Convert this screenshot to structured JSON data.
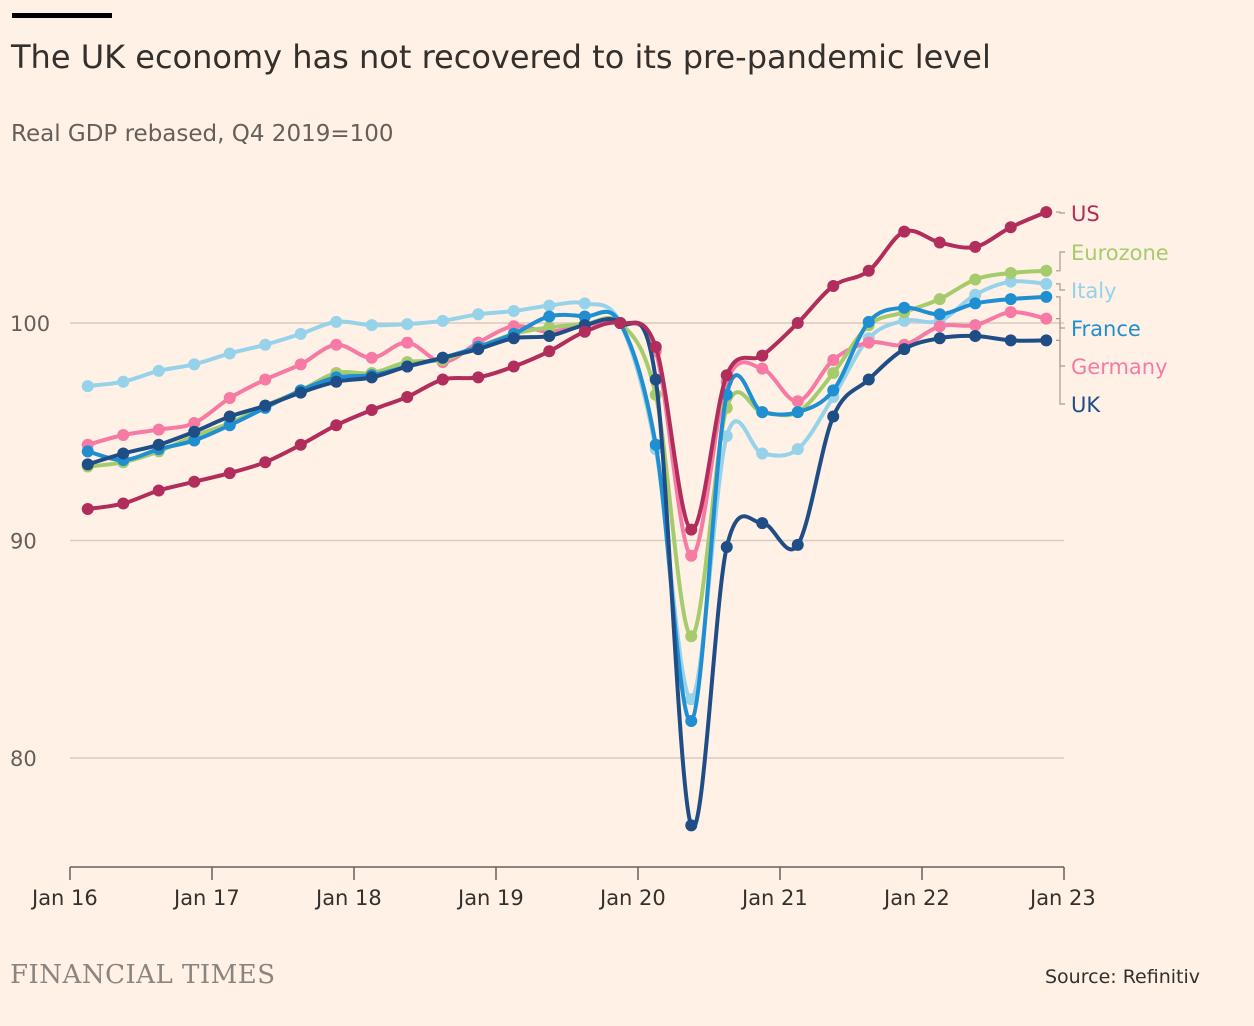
{
  "title": "The UK economy has not recovered to its pre-pandemic level",
  "subtitle": "Real GDP rebased, Q4 2019=100",
  "brand": "FINANCIAL TIMES",
  "source": "Source: Refinitiv",
  "chart_data": {
    "type": "line",
    "title": "The UK economy has not recovered to its pre-pandemic level",
    "ylabel": "Real GDP rebased, Q4 2019=100",
    "xlabel": "",
    "x": [
      "Q1 2016",
      "Q2 2016",
      "Q3 2016",
      "Q4 2016",
      "Q1 2017",
      "Q2 2017",
      "Q3 2017",
      "Q4 2017",
      "Q1 2018",
      "Q2 2018",
      "Q3 2018",
      "Q4 2018",
      "Q1 2019",
      "Q2 2019",
      "Q3 2019",
      "Q4 2019",
      "Q1 2020",
      "Q2 2020",
      "Q3 2020",
      "Q4 2020",
      "Q1 2021",
      "Q2 2021",
      "Q3 2021",
      "Q4 2021",
      "Q1 2022",
      "Q2 2022",
      "Q3 2022",
      "Q4 2022"
    ],
    "x_ticks": [
      "Jan 16",
      "Jan 17",
      "Jan 18",
      "Jan 19",
      "Jan 20",
      "Jan 21",
      "Jan 22",
      "Jan 23"
    ],
    "y_ticks": [
      80,
      90,
      100
    ],
    "ylim": [
      75,
      107
    ],
    "grid": true,
    "legend": "right, direct labels",
    "series": [
      {
        "name": "US",
        "color": "#b12d5c",
        "values": [
          91.45,
          91.7,
          92.3,
          92.7,
          93.1,
          93.6,
          94.4,
          95.3,
          96.0,
          96.6,
          97.4,
          97.5,
          98.0,
          98.7,
          99.6,
          100,
          98.9,
          90.5,
          97.6,
          98.5,
          100.0,
          101.7,
          102.4,
          104.2,
          103.7,
          103.5,
          104.4,
          105.1
        ]
      },
      {
        "name": "Eurozone",
        "color": "#a6cb6c",
        "values": [
          93.4,
          93.6,
          94.1,
          94.8,
          95.4,
          96.2,
          96.9,
          97.7,
          97.7,
          98.2,
          98.3,
          98.9,
          99.5,
          99.8,
          99.95,
          100,
          96.7,
          85.6,
          96.1,
          95.9,
          95.9,
          97.7,
          99.9,
          100.5,
          101.1,
          102.0,
          102.3,
          102.4
        ]
      },
      {
        "name": "Italy",
        "color": "#96d2ea",
        "values": [
          97.1,
          97.3,
          97.8,
          98.1,
          98.6,
          99.0,
          99.5,
          100.05,
          99.9,
          99.95,
          100.1,
          100.4,
          100.55,
          100.8,
          100.9,
          100,
          94.2,
          82.7,
          94.8,
          94.0,
          94.2,
          96.6,
          99.3,
          100.1,
          100.1,
          101.3,
          101.9,
          101.8
        ]
      },
      {
        "name": "France",
        "color": "#1f8fd2",
        "values": [
          94.1,
          93.7,
          94.2,
          94.6,
          95.3,
          96.1,
          96.9,
          97.5,
          97.6,
          98.0,
          98.4,
          98.9,
          99.5,
          100.3,
          100.3,
          100,
          94.4,
          81.7,
          96.7,
          95.9,
          95.9,
          96.9,
          100.05,
          100.7,
          100.4,
          100.9,
          101.1,
          101.2
        ]
      },
      {
        "name": "Germany",
        "color": "#f67aa3",
        "values": [
          94.4,
          94.85,
          95.1,
          95.4,
          96.55,
          97.4,
          98.1,
          99.0,
          98.4,
          99.1,
          98.2,
          99.1,
          99.85,
          99.6,
          99.9,
          100,
          98.7,
          89.3,
          97.3,
          97.9,
          96.4,
          98.3,
          99.1,
          99.0,
          99.85,
          99.9,
          100.5,
          100.2
        ]
      },
      {
        "name": "UK",
        "color": "#1f4d86",
        "values": [
          93.5,
          94.0,
          94.4,
          95.0,
          95.7,
          96.2,
          96.8,
          97.3,
          97.5,
          98.0,
          98.4,
          98.8,
          99.3,
          99.4,
          99.9,
          100,
          97.4,
          76.9,
          89.7,
          90.8,
          89.8,
          95.7,
          97.4,
          98.8,
          99.3,
          99.4,
          99.2,
          99.2
        ]
      }
    ]
  }
}
